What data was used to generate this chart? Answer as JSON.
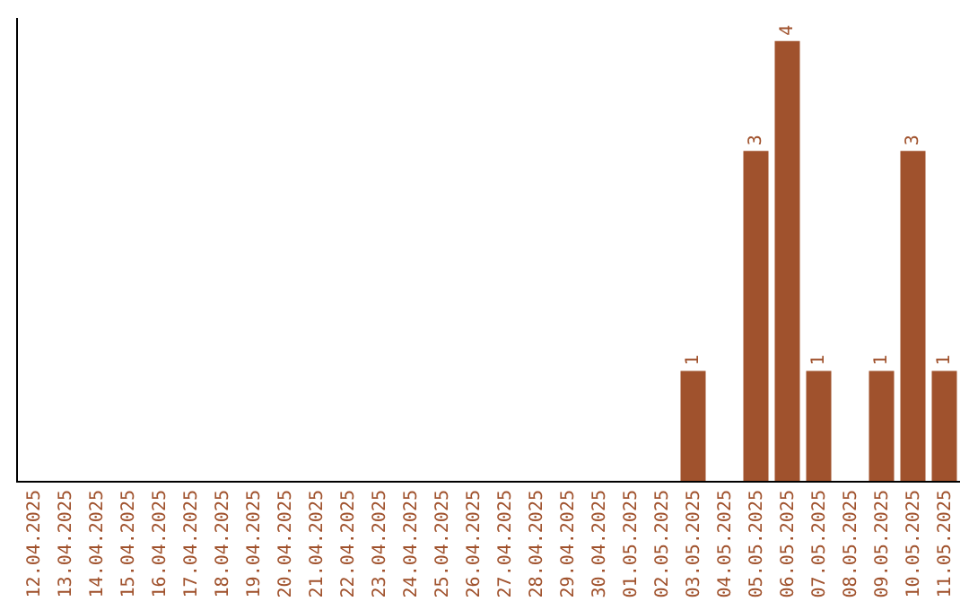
{
  "chart_data": {
    "type": "bar",
    "categories": [
      "12.04.2025",
      "13.04.2025",
      "14.04.2025",
      "15.04.2025",
      "16.04.2025",
      "17.04.2025",
      "18.04.2025",
      "19.04.2025",
      "20.04.2025",
      "21.04.2025",
      "22.04.2025",
      "23.04.2025",
      "24.04.2025",
      "25.04.2025",
      "26.04.2025",
      "27.04.2025",
      "28.04.2025",
      "29.04.2025",
      "30.04.2025",
      "01.05.2025",
      "02.05.2025",
      "03.05.2025",
      "04.05.2025",
      "05.05.2025",
      "06.05.2025",
      "07.05.2025",
      "08.05.2025",
      "09.05.2025",
      "10.05.2025",
      "11.05.2025"
    ],
    "values": [
      null,
      null,
      null,
      null,
      null,
      null,
      null,
      null,
      null,
      null,
      null,
      null,
      null,
      null,
      null,
      null,
      null,
      null,
      null,
      null,
      null,
      1,
      null,
      3,
      4,
      1,
      null,
      1,
      3,
      1
    ],
    "value_labels": [
      null,
      null,
      null,
      null,
      null,
      null,
      null,
      null,
      null,
      null,
      null,
      null,
      null,
      null,
      null,
      null,
      null,
      null,
      null,
      null,
      null,
      "1",
      null,
      "3",
      "4",
      "1",
      null,
      "1",
      "3",
      "1"
    ],
    "color": "#a0522d",
    "tick_labels": "x",
    "grid": false
  }
}
